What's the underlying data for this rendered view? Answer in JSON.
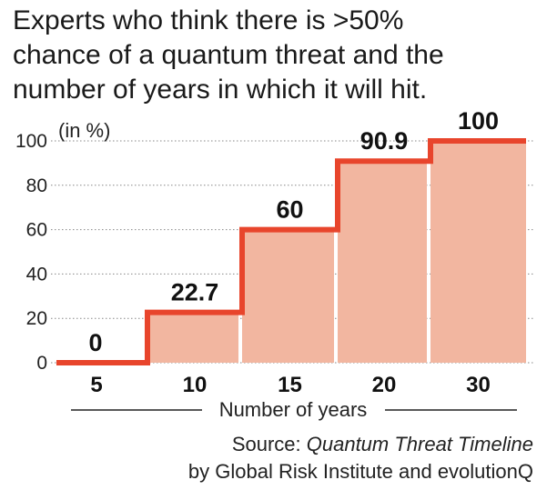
{
  "title_lines": [
    "Experts who think there is >50%",
    "chance of a quantum threat and the",
    "number of years in which it will hit."
  ],
  "source": {
    "prefix": "Source: ",
    "name": "Quantum Threat Timeline",
    "line2": "by Global Risk Institute and evolutionQ"
  },
  "colors": {
    "bar": "#f2b6a0",
    "step_line": "#e8452c",
    "grid": "#888888"
  },
  "chart_data": {
    "type": "bar",
    "categories": [
      "5",
      "10",
      "15",
      "20",
      "30"
    ],
    "values": [
      0,
      22.7,
      60,
      90.9,
      100
    ],
    "value_labels": [
      "0",
      "22.7",
      "60",
      "90.9",
      "100"
    ],
    "ylabel": "(in %)",
    "xlabel": "Number of years",
    "ylim": [
      0,
      100
    ],
    "yticks": [
      "0",
      "20",
      "40",
      "60",
      "80",
      "100"
    ],
    "grid": true,
    "step_outline": true
  }
}
